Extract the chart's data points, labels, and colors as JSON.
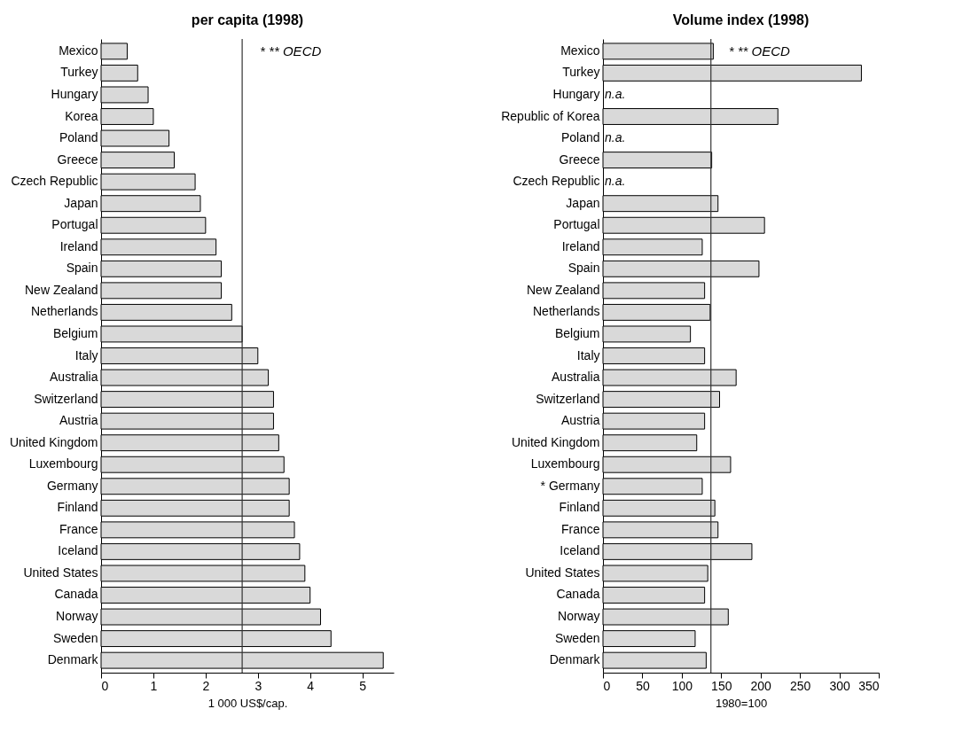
{
  "chart_data": [
    {
      "type": "bar",
      "orientation": "horizontal",
      "title": "per capita (1998)",
      "xlabel": "1 000 US$/cap.",
      "categories": [
        "Mexico",
        "Turkey",
        "Hungary",
        "Korea",
        "Poland",
        "Greece",
        "Czech Republic",
        "Japan",
        "Portugal",
        "Ireland",
        "Spain",
        "New Zealand",
        "Netherlands",
        "Belgium",
        "Italy",
        "Australia",
        "Switzerland",
        "Austria",
        "United Kingdom",
        "Luxembourg",
        "Germany",
        "Finland",
        "France",
        "Iceland",
        "United States",
        "Canada",
        "Norway",
        "Sweden",
        "Denmark"
      ],
      "values": [
        0.5,
        0.7,
        0.9,
        1.0,
        1.3,
        1.4,
        1.8,
        1.9,
        2.0,
        2.2,
        2.3,
        2.3,
        2.5,
        2.7,
        3.0,
        3.2,
        3.3,
        3.3,
        3.4,
        3.5,
        3.6,
        3.6,
        3.7,
        3.8,
        3.9,
        4.0,
        4.2,
        4.4,
        5.4
      ],
      "color": "#d9d9d9",
      "xlim": [
        0,
        5.6
      ],
      "xticks": [
        0,
        1,
        2,
        3,
        4,
        5
      ],
      "ref_lines": [
        {
          "axis": "x",
          "value": 2.7,
          "label": "* ** OECD",
          "color": "#333333"
        }
      ]
    },
    {
      "type": "bar",
      "orientation": "horizontal",
      "title": "Volume index (1998)",
      "xlabel": "1980=100",
      "categories": [
        "Mexico",
        "Turkey",
        "Hungary",
        "Republic of Korea",
        "Poland",
        "Greece",
        "Czech Republic",
        "Japan",
        "Portugal",
        "Ireland",
        "Spain",
        "New Zealand",
        "Netherlands",
        "Belgium",
        "Italy",
        "Australia",
        "Switzerland",
        "Austria",
        "United Kingdom",
        "Luxembourg",
        "* Germany",
        "Finland",
        "France",
        "Iceland",
        "United States",
        "Canada",
        "Norway",
        "Sweden",
        "Denmark"
      ],
      "values": [
        140,
        328,
        null,
        222,
        null,
        138,
        null,
        146,
        205,
        126,
        198,
        129,
        136,
        111,
        129,
        169,
        148,
        129,
        119,
        162,
        126,
        142,
        146,
        189,
        133,
        129,
        159,
        117,
        131
      ],
      "value_labels": [
        null,
        null,
        "n.a.",
        null,
        "n.a.",
        null,
        "n.a.",
        null,
        null,
        null,
        null,
        null,
        null,
        null,
        null,
        null,
        null,
        null,
        null,
        null,
        null,
        null,
        null,
        null,
        null,
        null,
        null,
        null,
        null
      ],
      "color": "#d9d9d9",
      "xlim": [
        0,
        350
      ],
      "xticks": [
        0,
        50,
        100,
        150,
        200,
        250,
        300,
        350
      ],
      "ref_lines": [
        {
          "axis": "x",
          "value": 137,
          "label": "* ** OECD",
          "color": "#333333"
        }
      ]
    }
  ]
}
